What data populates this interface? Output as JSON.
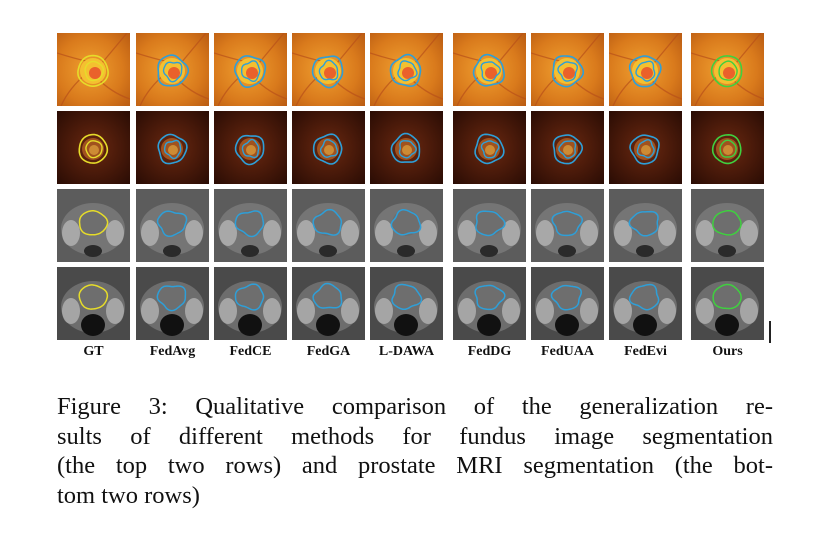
{
  "figure": {
    "columns": [
      "GT",
      "FedAvg",
      "FedCE",
      "FedGA",
      "L-DAWA",
      "FedDG",
      "FedUAA",
      "FedEvi",
      "Ours"
    ],
    "rows": [
      {
        "modality": "fundus-bright",
        "background": "#d9801f"
      },
      {
        "modality": "fundus-dark",
        "background": "#3a1408"
      },
      {
        "modality": "mri-axial-upper",
        "background": "#5a5a5a"
      },
      {
        "modality": "mri-axial-lower",
        "background": "#474747"
      }
    ],
    "colors": {
      "ground_truth": "#e6dc2a",
      "baseline": "#2e9fd8",
      "ours": "#3fd03f"
    }
  },
  "caption": {
    "lines": [
      "Figure 3: Qualitative comparison of the generalization re-",
      "sults of different methods for fundus image segmentation",
      "(the top two rows) and prostate MRI segmentation (the bot-",
      "tom two rows)"
    ]
  }
}
